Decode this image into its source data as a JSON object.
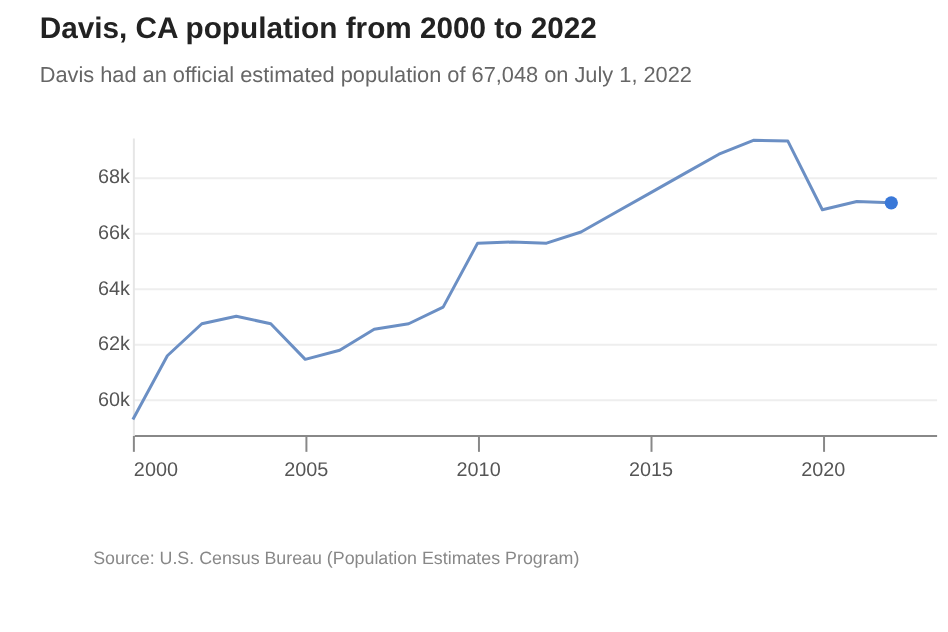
{
  "chart_data": {
    "type": "line",
    "title": "Davis, CA population from 2000 to 2022",
    "subtitle": "Davis had an official estimated population of 67,048 on July 1, 2022",
    "series": [
      {
        "color": "#6b8fc4",
        "x": [
          2000,
          2001,
          2002,
          2003,
          2004,
          2005,
          2006,
          2007,
          2008,
          2009,
          2010,
          2011,
          2012,
          2013,
          2014,
          2015,
          2016,
          2017,
          2018,
          2019,
          2020,
          2021,
          2022
        ],
        "values": [
          59260,
          61550,
          62700,
          62970,
          62700,
          61420,
          61750,
          62500,
          62700,
          63300,
          65600,
          65640,
          65600,
          66000,
          66700,
          67400,
          68100,
          68800,
          69300,
          69270,
          66800,
          67100,
          67050
        ]
      },
      {
        "type": "scatter",
        "color": "#3a78d8",
        "x": [
          2022
        ],
        "values": [
          67050
        ]
      }
    ],
    "xlim": [
      2000,
      2023.3
    ],
    "xticks": [
      2000,
      2005,
      2010,
      2015,
      2020
    ],
    "ylim": [
      58700,
      69400
    ],
    "yticks": [
      {
        "value": 60000,
        "label": "60k"
      },
      {
        "value": 62000,
        "label": "62k"
      },
      {
        "value": 64000,
        "label": "64k"
      },
      {
        "value": 66000,
        "label": "66k"
      },
      {
        "value": 68000,
        "label": "68k"
      }
    ],
    "grid": "y",
    "line_style": "solid",
    "annotations": [
      "Source: U.S. Census Bureau (Population Estimates Program)"
    ]
  }
}
